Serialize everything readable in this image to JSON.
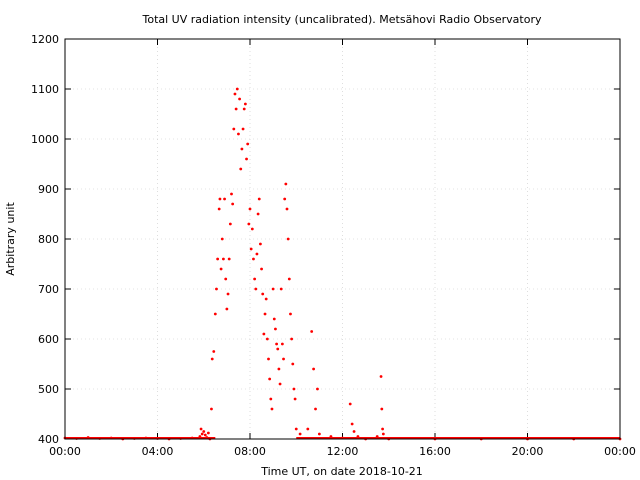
{
  "chart_data": {
    "type": "scatter",
    "title": "Total UV radiation intensity (uncalibrated). Metsähovi Radio Observatory",
    "xlabel": "Time UT, on date 2018-10-21",
    "ylabel": "Arbitrary unit",
    "xlim": [
      "00:00",
      "24:00"
    ],
    "ylim": [
      400,
      1200
    ],
    "x_ticks": [
      "00:00",
      "04:00",
      "08:00",
      "12:00",
      "16:00",
      "20:00",
      "00:00"
    ],
    "y_ticks": [
      400,
      500,
      600,
      700,
      800,
      900,
      1000,
      1100,
      1200
    ],
    "grid": true,
    "legend": "none",
    "marker_color": "#ff0000",
    "series": [
      {
        "x": [
          "00:00",
          "00:30",
          "01:00",
          "01:30",
          "02:00",
          "02:30",
          "03:00",
          "03:30",
          "04:00",
          "04:30",
          "05:00",
          "05:30",
          "05:50",
          "05:53",
          "05:56",
          "06:00",
          "06:04",
          "06:08",
          "06:12",
          "06:16",
          "06:20",
          "06:22",
          "06:26",
          "06:30",
          "06:33",
          "06:36",
          "06:40",
          "06:42",
          "06:45",
          "06:48",
          "06:51",
          "06:54",
          "06:57",
          "07:00",
          "07:03",
          "07:06",
          "07:09",
          "07:12",
          "07:15",
          "07:18",
          "07:21",
          "07:24",
          "07:27",
          "07:30",
          "07:33",
          "07:36",
          "07:39",
          "07:42",
          "07:45",
          "07:48",
          "07:51",
          "07:54",
          "07:57",
          "08:00",
          "08:03",
          "08:06",
          "08:09",
          "08:12",
          "08:15",
          "08:18",
          "08:21",
          "08:24",
          "08:27",
          "08:30",
          "08:33",
          "08:36",
          "08:39",
          "08:42",
          "08:45",
          "08:48",
          "08:51",
          "08:54",
          "08:57",
          "09:00",
          "09:03",
          "09:06",
          "09:09",
          "09:12",
          "09:15",
          "09:18",
          "09:21",
          "09:24",
          "09:27",
          "09:30",
          "09:33",
          "09:36",
          "09:39",
          "09:42",
          "09:45",
          "09:48",
          "09:51",
          "09:54",
          "09:57",
          "10:00",
          "10:10",
          "10:30",
          "10:40",
          "10:45",
          "10:50",
          "10:55",
          "11:00",
          "11:30",
          "12:00",
          "12:20",
          "12:25",
          "12:30",
          "12:40",
          "13:00",
          "13:30",
          "13:40",
          "13:42",
          "13:44",
          "13:46",
          "14:00",
          "16:00",
          "18:00",
          "20:00",
          "22:00",
          "24:00"
        ],
        "y": [
          402,
          401,
          403,
          401,
          402,
          400,
          401,
          402,
          401,
          400,
          401,
          402,
          405,
          420,
          410,
          415,
          408,
          403,
          412,
          400,
          460,
          560,
          575,
          650,
          700,
          760,
          860,
          880,
          740,
          800,
          760,
          880,
          720,
          660,
          690,
          760,
          830,
          890,
          870,
          1020,
          1090,
          1060,
          1100,
          1010,
          1080,
          940,
          980,
          1020,
          1060,
          1070,
          960,
          990,
          830,
          860,
          780,
          820,
          760,
          720,
          700,
          770,
          850,
          880,
          790,
          740,
          690,
          610,
          650,
          680,
          600,
          560,
          520,
          480,
          460,
          700,
          640,
          620,
          590,
          580,
          540,
          510,
          700,
          590,
          560,
          880,
          910,
          860,
          800,
          720,
          650,
          600,
          550,
          500,
          480,
          420,
          410,
          420,
          615,
          540,
          460,
          500,
          410,
          405,
          402,
          470,
          430,
          415,
          405,
          400,
          405,
          525,
          460,
          420,
          410,
          400,
          400,
          400,
          400,
          400,
          400
        ]
      }
    ]
  }
}
